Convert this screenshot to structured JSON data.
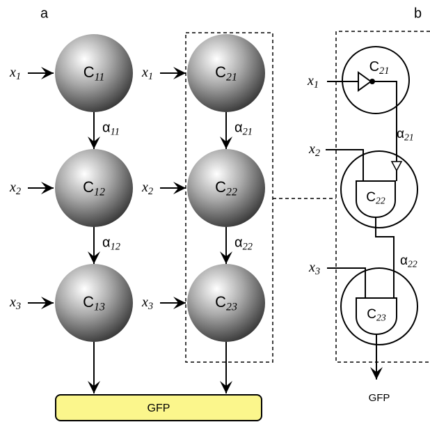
{
  "panels": [
    {
      "label": "a"
    },
    {
      "label": "b"
    }
  ],
  "left_column": {
    "nodes": [
      {
        "base": "C",
        "sub": "11"
      },
      {
        "base": "C",
        "sub": "12"
      },
      {
        "base": "C",
        "sub": "13"
      }
    ],
    "inputs": [
      {
        "base": "x",
        "sub": "1"
      },
      {
        "base": "x",
        "sub": "2"
      },
      {
        "base": "x",
        "sub": "3"
      }
    ],
    "edges": [
      {
        "base": "α",
        "sub": "11"
      },
      {
        "base": "α",
        "sub": "12"
      }
    ]
  },
  "middle_column": {
    "nodes": [
      {
        "base": "C",
        "sub": "21"
      },
      {
        "base": "C",
        "sub": "22"
      },
      {
        "base": "C",
        "sub": "23"
      }
    ],
    "inputs": [
      {
        "base": "x",
        "sub": "1"
      },
      {
        "base": "x",
        "sub": "2"
      },
      {
        "base": "x",
        "sub": "3"
      }
    ],
    "edges": [
      {
        "base": "α",
        "sub": "21"
      },
      {
        "base": "α",
        "sub": "22"
      }
    ]
  },
  "circuit": {
    "nodes": [
      {
        "base": "C",
        "sub": "21"
      },
      {
        "base": "C",
        "sub": "22"
      },
      {
        "base": "C",
        "sub": "23"
      }
    ],
    "inputs": [
      {
        "base": "x",
        "sub": "1"
      },
      {
        "base": "x",
        "sub": "2"
      },
      {
        "base": "x",
        "sub": "3"
      }
    ],
    "edges": [
      {
        "base": "α",
        "sub": "21"
      },
      {
        "base": "α",
        "sub": "22"
      }
    ],
    "output": "GFP"
  },
  "output_bar": {
    "label": "GFP"
  }
}
